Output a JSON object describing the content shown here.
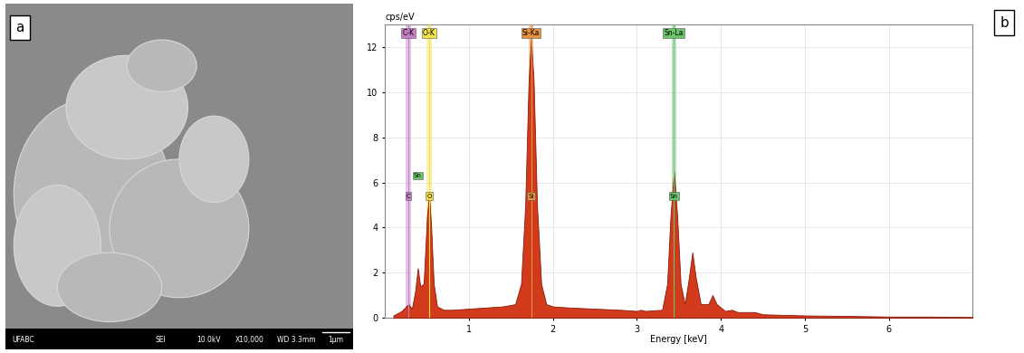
{
  "panel_a": {
    "label": "a",
    "type": "image",
    "footer": [
      "UFABC",
      "SEI",
      "10.0kV",
      "X10,000",
      "WD 3.3mm",
      "1μm"
    ]
  },
  "chart_data": {
    "type": "area",
    "label": "b",
    "y_label": "cps/eV",
    "x_label": "Energy [keV]",
    "x": [
      0.1,
      0.2,
      0.25,
      0.28,
      0.32,
      0.36,
      0.39,
      0.42,
      0.46,
      0.5,
      0.525,
      0.55,
      0.58,
      0.62,
      0.7,
      0.8,
      1.0,
      1.2,
      1.4,
      1.55,
      1.62,
      1.67,
      1.71,
      1.74,
      1.77,
      1.81,
      1.86,
      1.92,
      2.0,
      2.2,
      2.5,
      2.8,
      3.0,
      3.05,
      3.1,
      3.3,
      3.36,
      3.4,
      3.44,
      3.48,
      3.52,
      3.57,
      3.62,
      3.66,
      3.7,
      3.76,
      3.85,
      3.9,
      3.95,
      4.05,
      4.13,
      4.2,
      4.4,
      4.5,
      5.0,
      5.5,
      6.0,
      6.5,
      7.0
    ],
    "values": [
      0.1,
      0.3,
      0.5,
      0.6,
      0.4,
      1.2,
      2.2,
      1.4,
      1.5,
      4.5,
      5.5,
      4.0,
      1.5,
      0.5,
      0.35,
      0.35,
      0.4,
      0.45,
      0.5,
      0.6,
      1.5,
      5.0,
      10.5,
      12.4,
      10.5,
      5.0,
      1.5,
      0.6,
      0.5,
      0.45,
      0.4,
      0.35,
      0.3,
      0.35,
      0.3,
      0.35,
      1.5,
      4.5,
      6.5,
      4.5,
      1.5,
      0.6,
      1.8,
      2.9,
      1.8,
      0.6,
      0.6,
      1.0,
      0.6,
      0.3,
      0.35,
      0.25,
      0.25,
      0.15,
      0.1,
      0.08,
      0.05,
      0.05,
      0.03
    ],
    "color": "#d13b1b",
    "xlim": [
      0,
      7
    ],
    "ylim": [
      0,
      13
    ],
    "xticks": [
      1,
      2,
      3,
      4,
      5,
      6
    ],
    "yticks": [
      0,
      2,
      4,
      6,
      8,
      10,
      12
    ],
    "grid": true,
    "peak_lines": [
      {
        "name": "C-K",
        "energy": 0.277,
        "color": "#c77fc7"
      },
      {
        "name": "O-K",
        "energy": 0.525,
        "color": "#f2e24a"
      },
      {
        "name": "Si-Ka",
        "energy": 1.74,
        "color": "#e8923f"
      },
      {
        "name": "Sn-La",
        "energy": 3.44,
        "color": "#6cc46c"
      }
    ],
    "peak_marks": [
      {
        "name": "C",
        "energy": 0.277,
        "y": 5.4,
        "color": "#c77fc7"
      },
      {
        "name": "Sn",
        "energy": 0.39,
        "y": 6.3,
        "color": "#6cc46c"
      },
      {
        "name": "O",
        "energy": 0.525,
        "y": 5.4,
        "color": "#f2e24a"
      },
      {
        "name": "Si",
        "energy": 1.74,
        "y": 5.4,
        "color": "#e8923f"
      },
      {
        "name": "Sn",
        "energy": 3.44,
        "y": 5.4,
        "color": "#6cc46c"
      }
    ]
  }
}
